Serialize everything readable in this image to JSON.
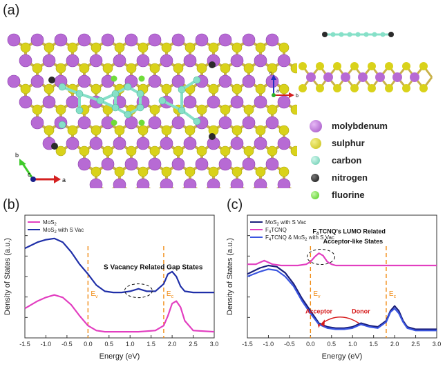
{
  "panel_a": {
    "label": "(a)",
    "legend": [
      {
        "name": "molybdenum",
        "color": "#b76ad4"
      },
      {
        "name": "sulphur",
        "color": "#d9d21a"
      },
      {
        "name": "carbon",
        "color": "#86e0c8"
      },
      {
        "name": "nitrogen",
        "color": "#2b2b2b"
      },
      {
        "name": "fluorine",
        "color": "#6fdc3a"
      }
    ],
    "top_axes": {
      "b": "b",
      "c": "c",
      "a": "a"
    },
    "side_axes": {
      "c": "c",
      "a": "a",
      "b": "b"
    }
  },
  "chart_data": [
    {
      "type": "line",
      "panel": "(b)",
      "xlabel": "Energy (eV)",
      "ylabel": "Density of States (a.u.)",
      "xlim": [
        -1.5,
        3.0
      ],
      "xticks": [
        "-1.5",
        "-1.0",
        "-0.5",
        "0.0",
        "0.5",
        "1.0",
        "1.5",
        "2.0",
        "2.5",
        "3.0"
      ],
      "annotation": "S Vacancy Related Gap States",
      "ev_label": "E",
      "ev_sub": "v",
      "ec_label": "E",
      "ec_sub": "c",
      "ev": 0.0,
      "ec": 1.8,
      "series": [
        {
          "name": "MoS",
          "sub": "2",
          "suffix": "",
          "color": "#e23ec0",
          "x": [
            -1.5,
            -1.2,
            -1.0,
            -0.8,
            -0.6,
            -0.4,
            -0.2,
            0.0,
            0.2,
            0.4,
            0.8,
            1.2,
            1.6,
            1.8,
            1.9,
            2.0,
            2.1,
            2.2,
            2.3,
            2.5,
            3.0
          ],
          "y": [
            0.24,
            0.3,
            0.33,
            0.35,
            0.33,
            0.27,
            0.18,
            0.1,
            0.06,
            0.05,
            0.05,
            0.05,
            0.06,
            0.1,
            0.18,
            0.28,
            0.3,
            0.25,
            0.14,
            0.06,
            0.05
          ]
        },
        {
          "name": "MoS",
          "sub": "2",
          "suffix": " with S Vac",
          "color": "#1f2fa8",
          "x": [
            -1.5,
            -1.2,
            -1.0,
            -0.8,
            -0.6,
            -0.4,
            -0.2,
            0.0,
            0.2,
            0.4,
            0.6,
            0.8,
            1.0,
            1.2,
            1.4,
            1.6,
            1.8,
            1.9,
            2.0,
            2.1,
            2.2,
            2.3,
            2.5,
            3.0
          ],
          "y": [
            0.73,
            0.78,
            0.8,
            0.81,
            0.78,
            0.7,
            0.6,
            0.52,
            0.43,
            0.38,
            0.37,
            0.37,
            0.38,
            0.4,
            0.38,
            0.38,
            0.44,
            0.52,
            0.54,
            0.5,
            0.42,
            0.38,
            0.37,
            0.37
          ]
        }
      ]
    },
    {
      "type": "line",
      "panel": "(c)",
      "xlabel": "Energy (eV)",
      "ylabel": "Density of States (a.u.)",
      "xlim": [
        -1.5,
        3.0
      ],
      "xticks": [
        "-1.5",
        "-1.0",
        "-0.5",
        "0.0",
        "0.5",
        "1.0",
        "1.5",
        "2.0",
        "2.5",
        "3.0"
      ],
      "annotation_1": "F",
      "annotation_1_sub": "4",
      "annotation_1_rest": "TCNQ's LUMO Related",
      "annotation_2": "Acceptor-like States",
      "acceptor_label": "Acceptor",
      "donor_label": "Donor",
      "ev_label": "E",
      "ev_sub": "v",
      "ec_label": "E",
      "ec_sub": "c",
      "ev": 0.0,
      "ec": 1.8,
      "series": [
        {
          "name": "MoS",
          "sub": "2",
          "suffix": " with S Vac",
          "color": "#1a1f7a",
          "x": [
            -1.5,
            -1.2,
            -1.0,
            -0.8,
            -0.6,
            -0.4,
            -0.2,
            0.0,
            0.2,
            0.4,
            0.6,
            0.8,
            1.0,
            1.2,
            1.4,
            1.6,
            1.8,
            1.9,
            2.0,
            2.1,
            2.2,
            2.3,
            2.5,
            3.0
          ],
          "y": [
            0.52,
            0.57,
            0.59,
            0.58,
            0.53,
            0.44,
            0.32,
            0.22,
            0.12,
            0.09,
            0.08,
            0.08,
            0.09,
            0.12,
            0.1,
            0.09,
            0.14,
            0.22,
            0.26,
            0.22,
            0.14,
            0.09,
            0.07,
            0.07
          ]
        },
        {
          "name": "F",
          "sub": "4",
          "suffix": "TCNQ",
          "color": "#e23ec0",
          "x": [
            -1.5,
            -1.3,
            -1.1,
            -0.9,
            -0.7,
            -0.5,
            -0.3,
            -0.1,
            0.0,
            0.1,
            0.2,
            0.3,
            0.4,
            0.5,
            0.6,
            0.8,
            1.0,
            1.5,
            2.0,
            3.0
          ],
          "y": [
            0.6,
            0.6,
            0.63,
            0.6,
            0.59,
            0.59,
            0.59,
            0.6,
            0.62,
            0.66,
            0.69,
            0.67,
            0.62,
            0.6,
            0.59,
            0.59,
            0.59,
            0.59,
            0.59,
            0.59
          ]
        },
        {
          "name": "F",
          "sub": "4",
          "suffix": "TCNQ & MoS",
          "sub2": "2",
          "suffix2": " with S Vac",
          "color": "#3a55e0",
          "x": [
            -1.5,
            -1.2,
            -1.0,
            -0.8,
            -0.6,
            -0.4,
            -0.2,
            0.0,
            0.2,
            0.4,
            0.6,
            0.8,
            1.0,
            1.2,
            1.4,
            1.6,
            1.8,
            1.9,
            2.0,
            2.1,
            2.2,
            2.3,
            2.5,
            3.0
          ],
          "y": [
            0.5,
            0.54,
            0.56,
            0.55,
            0.5,
            0.42,
            0.3,
            0.2,
            0.11,
            0.08,
            0.07,
            0.07,
            0.08,
            0.11,
            0.09,
            0.08,
            0.13,
            0.21,
            0.24,
            0.2,
            0.13,
            0.08,
            0.06,
            0.06
          ]
        }
      ]
    }
  ]
}
